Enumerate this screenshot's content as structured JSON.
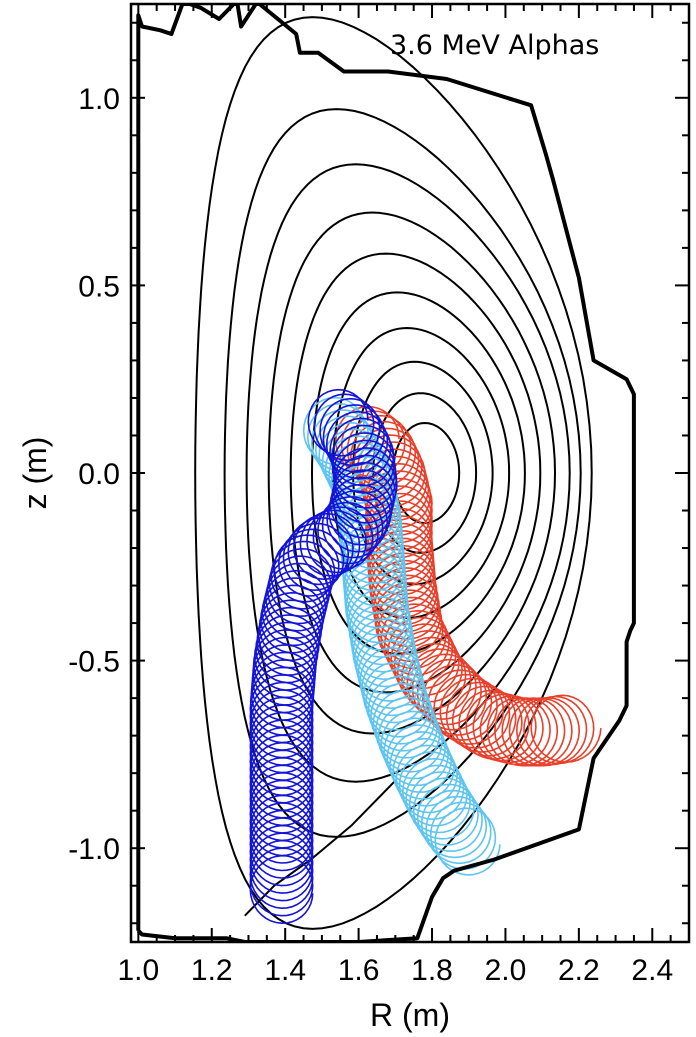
{
  "chart_data": {
    "type": "line",
    "title": "3.6 MeV Alphas",
    "xlabel": "R (m)",
    "ylabel": "z (m)",
    "xlim": [
      0.98,
      2.5
    ],
    "ylim": [
      -1.25,
      1.25
    ],
    "x_ticks": [
      1.0,
      1.2,
      1.4,
      1.6,
      1.8,
      2.0,
      2.2,
      2.4
    ],
    "x_tick_labels": [
      "1.0",
      "1.2",
      "1.4",
      "1.6",
      "1.8",
      "2.0",
      "2.2",
      "2.4"
    ],
    "y_ticks": [
      -1.0,
      -0.5,
      0.0,
      0.5,
      1.0
    ],
    "y_tick_labels": [
      "-1.0",
      "-0.5",
      "0.0",
      "0.5",
      "1.0"
    ],
    "grid": false,
    "colors": {
      "wall": "#000000",
      "flux_surfaces": "#000000",
      "orbit_red": "#e8402a",
      "orbit_light_blue": "#5ec4f0",
      "orbit_dark_blue": "#1414d8"
    },
    "wall": {
      "R": [
        1.0,
        1.0,
        1.01,
        1.06,
        1.09,
        1.12,
        1.14,
        1.17,
        1.22,
        1.26,
        1.27,
        1.28,
        1.32,
        1.33,
        1.43,
        1.44,
        1.49,
        1.56,
        1.68,
        1.84,
        2.07,
        2.11,
        2.13,
        2.2,
        2.24,
        2.33,
        2.35,
        2.35,
        2.34,
        2.33,
        2.33,
        2.31,
        2.24,
        2.2,
        1.97,
        1.86,
        1.83,
        1.8,
        1.76,
        1.6,
        1.42,
        1.29,
        1.24,
        1.1,
        1.01,
        1.0
      ],
      "z": [
        -1.22,
        1.22,
        1.19,
        1.18,
        1.17,
        1.25,
        1.25,
        1.24,
        1.21,
        1.25,
        1.25,
        1.19,
        1.25,
        1.25,
        1.17,
        1.12,
        1.12,
        1.07,
        1.07,
        1.05,
        0.98,
        0.85,
        0.78,
        0.52,
        0.3,
        0.25,
        0.21,
        -0.4,
        -0.42,
        -0.45,
        -0.62,
        -0.66,
        -0.76,
        -0.95,
        -1.03,
        -1.06,
        -1.08,
        -1.13,
        -1.24,
        -1.25,
        -1.25,
        -1.25,
        -1.24,
        -1.24,
        -1.23,
        -1.22
      ]
    },
    "flux_surfaces": [
      {
        "R0": 1.695,
        "z0": 0.0,
        "a": 0.54,
        "kappa": 2.25,
        "delta": 0.42
      },
      {
        "R0": 1.72,
        "z0": 0.0,
        "a": 0.485,
        "kappa": 2.0,
        "delta": 0.38
      },
      {
        "R0": 1.735,
        "z0": 0.0,
        "a": 0.44,
        "kappa": 1.87,
        "delta": 0.33
      },
      {
        "R0": 1.745,
        "z0": 0.0,
        "a": 0.39,
        "kappa": 1.78,
        "delta": 0.28
      },
      {
        "R0": 1.755,
        "z0": 0.0,
        "a": 0.34,
        "kappa": 1.72,
        "delta": 0.24
      },
      {
        "R0": 1.763,
        "z0": 0.0,
        "a": 0.29,
        "kappa": 1.66,
        "delta": 0.2
      },
      {
        "R0": 1.77,
        "z0": 0.0,
        "a": 0.24,
        "kappa": 1.61,
        "delta": 0.16
      },
      {
        "R0": 1.775,
        "z0": 0.0,
        "a": 0.19,
        "kappa": 1.56,
        "delta": 0.12
      },
      {
        "R0": 1.78,
        "z0": 0.0,
        "a": 0.14,
        "kappa": 1.52,
        "delta": 0.08
      },
      {
        "R0": 1.784,
        "z0": 0.0,
        "a": 0.09,
        "kappa": 1.48,
        "delta": 0.04
      }
    ],
    "separatrix_leg": {
      "R": [
        1.29,
        1.37,
        1.47,
        1.58,
        1.7
      ],
      "z": [
        -1.18,
        -1.1,
        -1.03,
        -0.94,
        -0.82
      ]
    },
    "series": [
      {
        "color": "#e8402a",
        "gyroradius_m": 0.09,
        "guiding_center": {
          "R": [
            1.62,
            1.66,
            1.69,
            1.71,
            1.71,
            1.72,
            1.74,
            1.8,
            1.88,
            1.96,
            2.04,
            2.11,
            2.17
          ],
          "z": [
            0.09,
            0.06,
            0.0,
            -0.08,
            -0.18,
            -0.3,
            -0.42,
            -0.54,
            -0.62,
            -0.67,
            -0.69,
            -0.69,
            -0.68
          ]
        }
      },
      {
        "color": "#5ec4f0",
        "gyroradius_m": 0.085,
        "guiding_center": {
          "R": [
            1.53,
            1.57,
            1.61,
            1.63,
            1.64,
            1.65,
            1.67,
            1.7,
            1.74,
            1.78,
            1.82,
            1.86,
            1.9
          ],
          "z": [
            0.12,
            0.06,
            -0.02,
            -0.12,
            -0.24,
            -0.36,
            -0.48,
            -0.6,
            -0.71,
            -0.8,
            -0.88,
            -0.94,
            -0.99
          ]
        }
      },
      {
        "color": "#1414d8",
        "gyroradius_m": 0.085,
        "guiding_center": {
          "R": [
            1.54,
            1.58,
            1.61,
            1.62,
            1.6,
            1.56,
            1.5,
            1.45,
            1.42,
            1.4,
            1.39,
            1.39,
            1.39,
            1.39,
            1.39
          ],
          "z": [
            0.14,
            0.11,
            0.05,
            -0.03,
            -0.12,
            -0.17,
            -0.2,
            -0.26,
            -0.38,
            -0.5,
            -0.62,
            -0.74,
            -0.86,
            -0.98,
            -1.12
          ]
        }
      }
    ]
  }
}
